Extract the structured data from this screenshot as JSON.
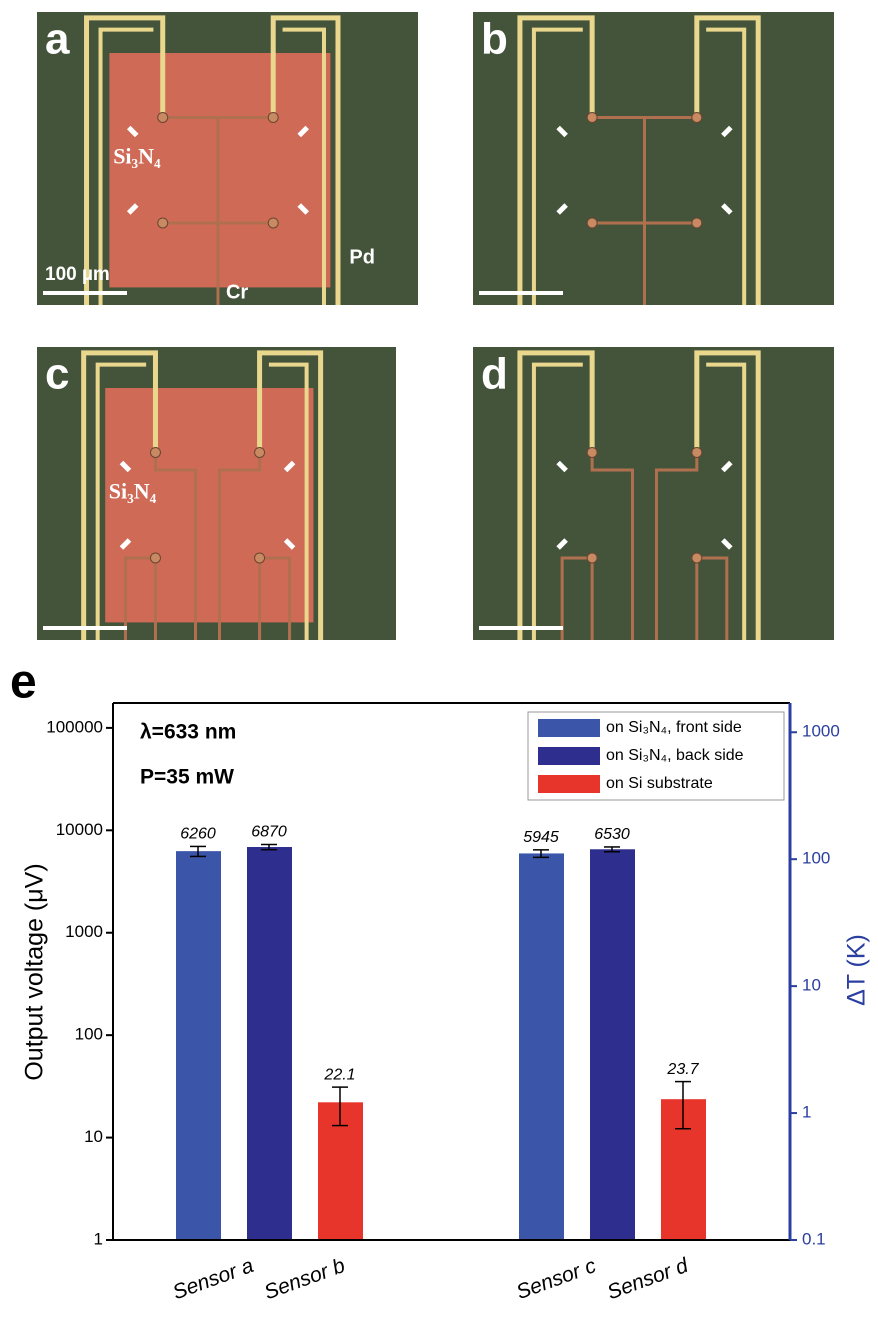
{
  "panels": [
    {
      "label": "a",
      "material": "Si₃N₄",
      "scale": "100 µm",
      "metals": [
        "Cr",
        "Pd"
      ]
    },
    {
      "label": "b"
    },
    {
      "label": "c",
      "material": "Si₃N₄"
    },
    {
      "label": "d"
    }
  ],
  "chart_data": {
    "type": "bar",
    "panel_label": "e",
    "annotations": [
      "λ=633 nm",
      "P=35 mW"
    ],
    "y_label": "Output voltage (μV)",
    "y2_label": "ΔT (K)",
    "categories": [
      "Sensor a",
      "Sensor b",
      "Sensor c",
      "Sensor d"
    ],
    "series": [
      {
        "name": "on Si₃N₄, front side",
        "color": "#3b55a8",
        "values": [
          6260,
          null,
          5945,
          null
        ],
        "errors": [
          700,
          null,
          500,
          null
        ]
      },
      {
        "name": "on Si₃N₄, back side",
        "color": "#2e2e8e",
        "values": [
          6870,
          null,
          6530,
          null
        ],
        "errors": [
          400,
          null,
          350,
          null
        ]
      },
      {
        "name": "on Si substrate",
        "color": "#e8352b",
        "values": [
          null,
          22.1,
          null,
          23.7
        ],
        "errors": [
          null,
          9,
          null,
          11.5
        ]
      }
    ],
    "yscale": "log",
    "ylim": [
      1,
      175000
    ],
    "yticks": [
      1,
      10,
      100,
      1000,
      10000,
      100000
    ],
    "y2scale": "log",
    "y2lim": [
      0.1,
      1700
    ],
    "y2ticks": [
      0.1,
      1,
      10,
      100,
      1000
    ],
    "y2color": "#2b3fa0",
    "legend": "upper right"
  }
}
